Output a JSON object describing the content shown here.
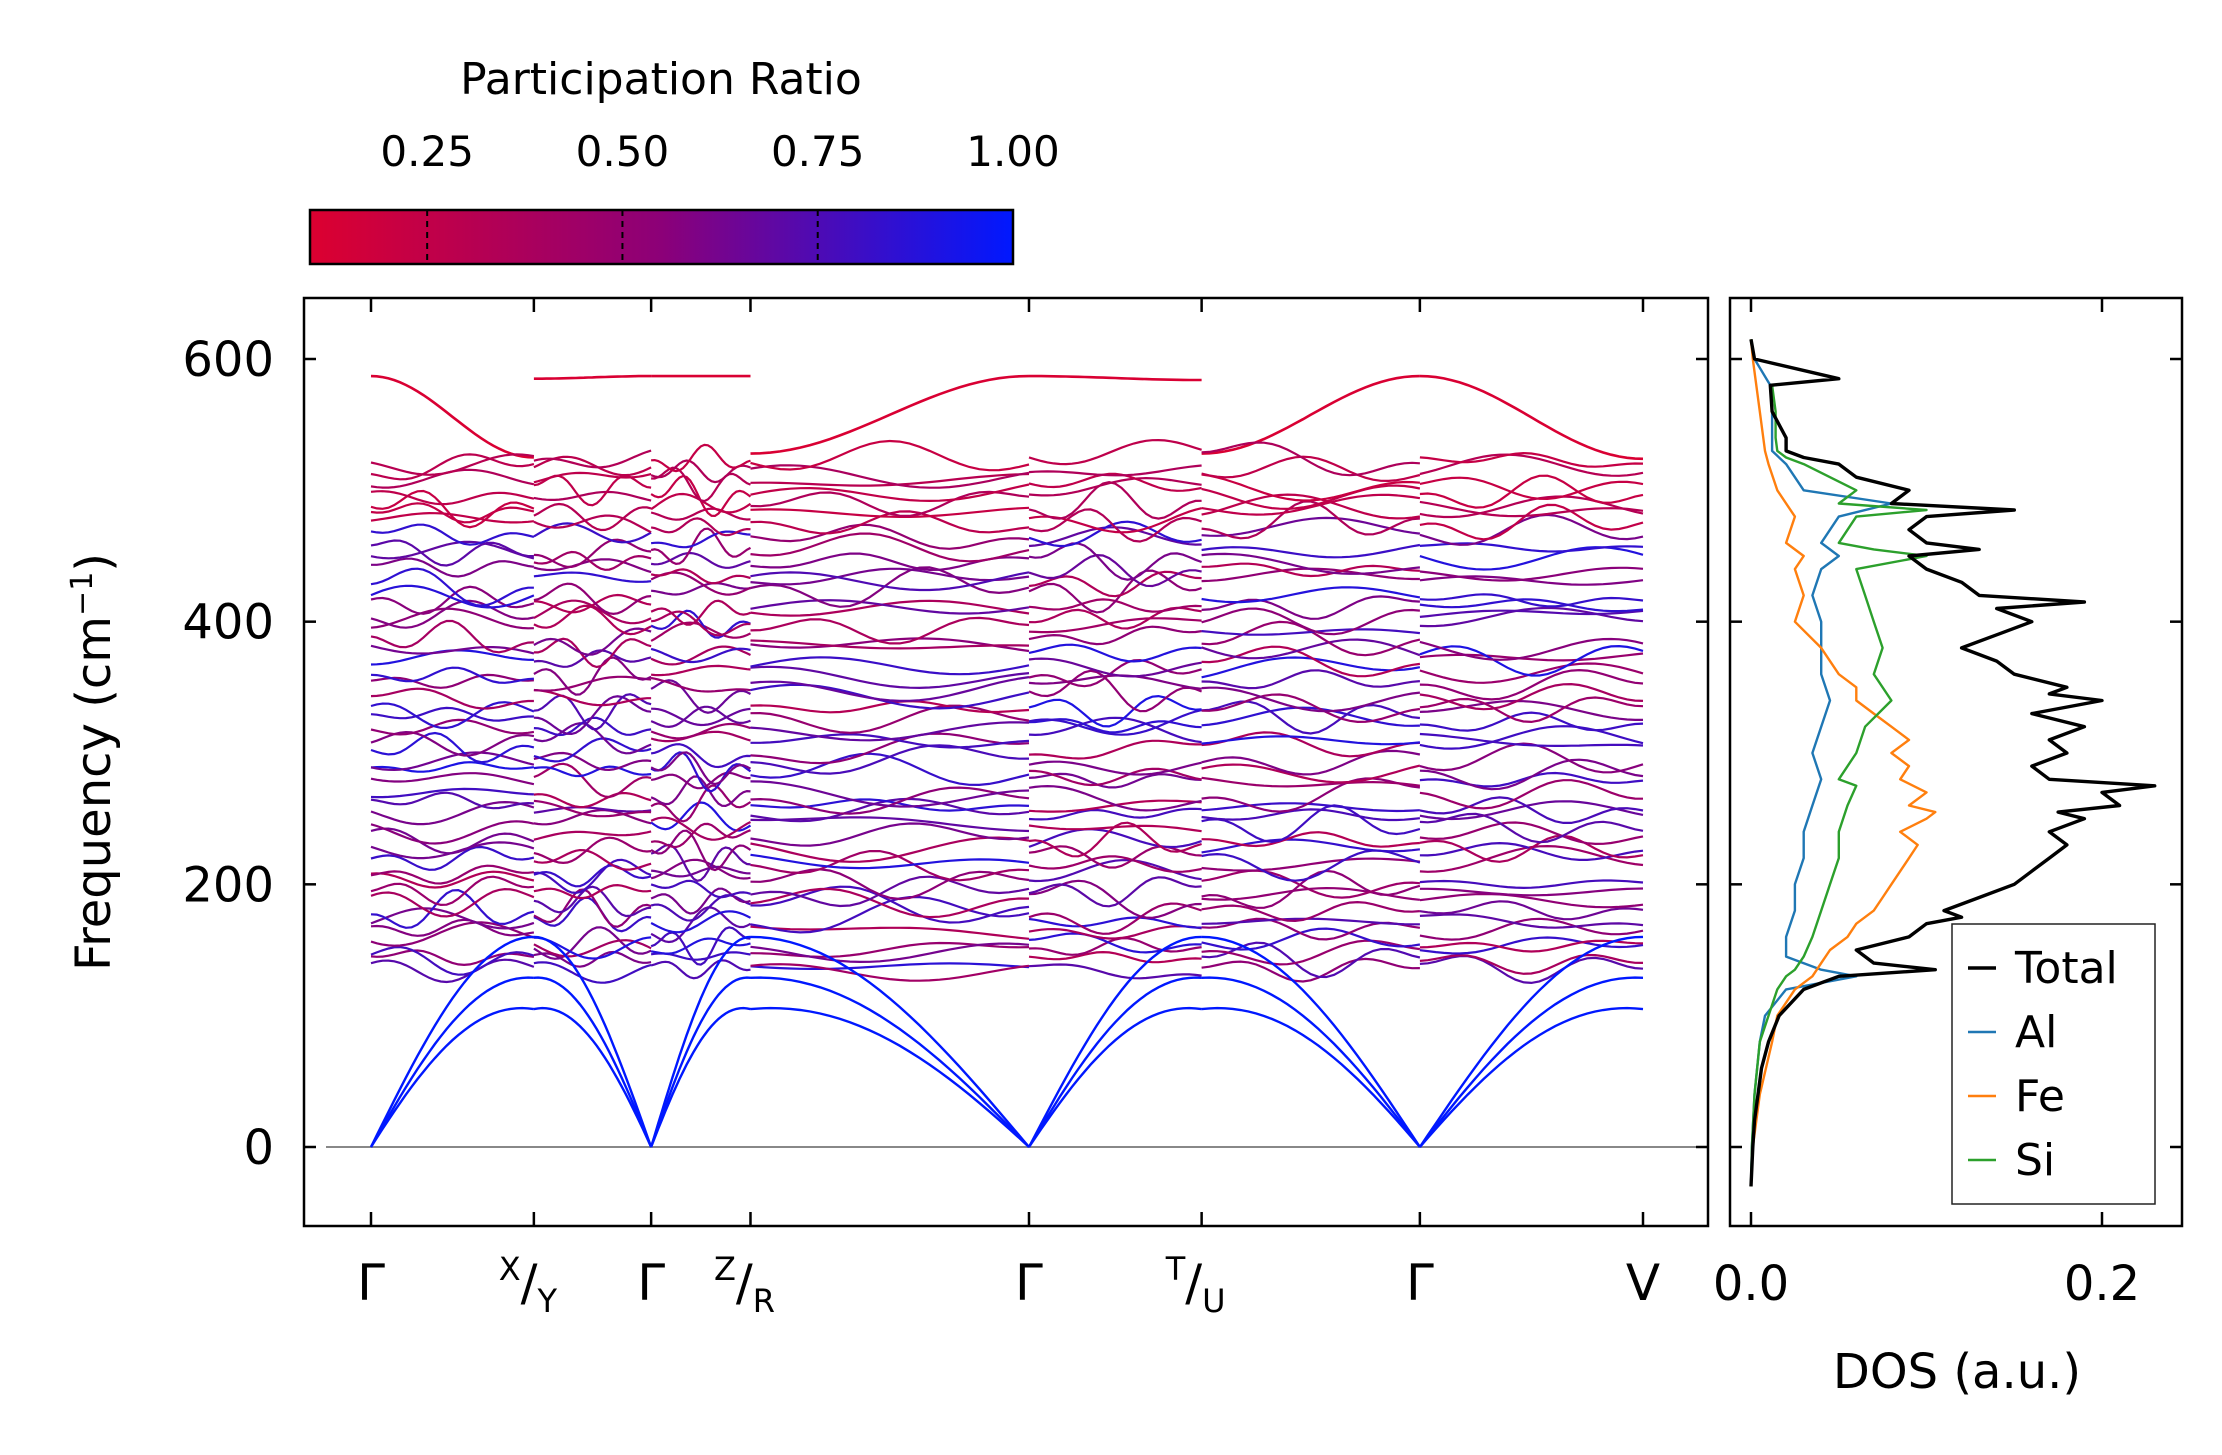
{
  "colorbar": {
    "title": "Participation Ratio",
    "ticks": [
      "0.25",
      "0.50",
      "0.75",
      "1.00"
    ],
    "tick_values": [
      0.25,
      0.5,
      0.75,
      1.0
    ],
    "range": [
      0.1,
      1.0
    ],
    "color_low": "#dc0030",
    "color_mid": "#8c0078",
    "color_high": "#0018ff"
  },
  "chart_data": [
    {
      "type": "line",
      "title": "",
      "ylabel": "Frequency (cm",
      "ylabel_sup": "−1",
      "ylabel_tail": ")",
      "ylim": [
        -60,
        650
      ],
      "yticks": [
        0,
        200,
        400,
        600
      ],
      "ytick_labels": [
        "0",
        "200",
        "400",
        "600"
      ],
      "kpath": [
        {
          "label": "Γ",
          "pos": 0
        },
        {
          "label_sup": "X",
          "label_sub": "Y",
          "pos": 1
        },
        {
          "label": "Γ",
          "pos": 1.72
        },
        {
          "label_sup": "Z",
          "label_sub": "R",
          "pos": 2.33
        },
        {
          "label": "Γ",
          "pos": 4.04
        },
        {
          "label_sup": "T",
          "label_sub": "U",
          "pos": 5.1
        },
        {
          "label": "Γ",
          "pos": 6.44
        },
        {
          "label": "V",
          "pos": 7.81
        }
      ],
      "segments": [
        {
          "from": 0,
          "to": 1,
          "top": [
            587,
            525
          ]
        },
        {
          "from": 1,
          "to": 1.72,
          "top": [
            585,
            587
          ]
        },
        {
          "from": 1.72,
          "to": 2.33,
          "top": [
            587,
            587
          ]
        },
        {
          "from": 2.33,
          "to": 4.04,
          "top": [
            528,
            587
          ]
        },
        {
          "from": 4.04,
          "to": 5.1,
          "top": [
            587,
            584
          ]
        },
        {
          "from": 5.1,
          "to": 6.44,
          "top": [
            528,
            587
          ]
        },
        {
          "from": 6.44,
          "to": 7.81,
          "top": [
            587,
            524
          ]
        }
      ],
      "band_count_shown": 48,
      "frequency_range_optical": [
        135,
        525
      ]
    },
    {
      "type": "line",
      "xlabel": "DOS (a.u.)",
      "xlim": [
        -0.012,
        0.24
      ],
      "xticks": [
        0.0,
        0.2
      ],
      "xtick_labels": [
        "0.0",
        "0.2"
      ],
      "ylim": [
        -60,
        650
      ],
      "legend_position": "lower-right",
      "series": [
        {
          "name": "Total",
          "color": "#000000",
          "y": [
            -30,
            0,
            20,
            40,
            60,
            80,
            100,
            120,
            130,
            135,
            140,
            150,
            160,
            170,
            175,
            180,
            190,
            200,
            210,
            220,
            230,
            240,
            250,
            255,
            260,
            270,
            275,
            280,
            290,
            300,
            310,
            320,
            330,
            340,
            345,
            350,
            360,
            370,
            380,
            390,
            400,
            410,
            415,
            420,
            430,
            440,
            450,
            455,
            460,
            470,
            480,
            485,
            490,
            500,
            510,
            520,
            525,
            530,
            540,
            560,
            580,
            585,
            600,
            615
          ],
          "x": [
            0.0,
            0.001,
            0.002,
            0.004,
            0.006,
            0.01,
            0.016,
            0.03,
            0.05,
            0.105,
            0.07,
            0.06,
            0.09,
            0.1,
            0.12,
            0.11,
            0.13,
            0.15,
            0.16,
            0.17,
            0.18,
            0.17,
            0.19,
            0.175,
            0.21,
            0.2,
            0.23,
            0.17,
            0.16,
            0.18,
            0.17,
            0.19,
            0.16,
            0.2,
            0.17,
            0.18,
            0.15,
            0.14,
            0.12,
            0.14,
            0.16,
            0.14,
            0.19,
            0.13,
            0.12,
            0.1,
            0.09,
            0.13,
            0.1,
            0.09,
            0.1,
            0.15,
            0.08,
            0.09,
            0.06,
            0.05,
            0.03,
            0.02,
            0.02,
            0.012,
            0.011,
            0.05,
            0.002,
            0.0
          ]
        },
        {
          "name": "Al",
          "color": "#1f77b4",
          "y": [
            -30,
            0,
            40,
            80,
            100,
            120,
            130,
            135,
            145,
            160,
            180,
            200,
            220,
            240,
            260,
            280,
            300,
            320,
            340,
            360,
            380,
            400,
            420,
            440,
            450,
            460,
            480,
            490,
            500,
            520,
            530,
            560,
            580,
            600,
            615
          ],
          "x": [
            0.0,
            0.0005,
            0.002,
            0.005,
            0.008,
            0.02,
            0.06,
            0.04,
            0.02,
            0.02,
            0.025,
            0.025,
            0.03,
            0.03,
            0.035,
            0.04,
            0.035,
            0.04,
            0.045,
            0.04,
            0.04,
            0.04,
            0.035,
            0.04,
            0.05,
            0.04,
            0.05,
            0.08,
            0.03,
            0.02,
            0.012,
            0.012,
            0.011,
            0.002,
            0.0
          ]
        },
        {
          "name": "Fe",
          "color": "#ff7f0e",
          "y": [
            -30,
            0,
            40,
            80,
            100,
            120,
            130,
            140,
            150,
            160,
            170,
            180,
            190,
            200,
            210,
            220,
            230,
            240,
            250,
            255,
            260,
            270,
            280,
            290,
            300,
            310,
            320,
            330,
            340,
            350,
            360,
            380,
            400,
            420,
            440,
            450,
            460,
            480,
            500,
            520,
            530,
            560,
            600,
            615
          ],
          "x": [
            0.0,
            0.001,
            0.005,
            0.012,
            0.015,
            0.025,
            0.035,
            0.04,
            0.045,
            0.055,
            0.06,
            0.07,
            0.075,
            0.08,
            0.085,
            0.09,
            0.095,
            0.085,
            0.1,
            0.105,
            0.09,
            0.1,
            0.085,
            0.09,
            0.08,
            0.09,
            0.08,
            0.07,
            0.06,
            0.06,
            0.05,
            0.04,
            0.025,
            0.03,
            0.025,
            0.03,
            0.02,
            0.025,
            0.015,
            0.01,
            0.008,
            0.005,
            0.001,
            0.0
          ]
        },
        {
          "name": "Si",
          "color": "#2ca02c",
          "y": [
            -30,
            0,
            40,
            80,
            100,
            120,
            130,
            135,
            145,
            160,
            180,
            200,
            220,
            240,
            260,
            275,
            280,
            300,
            320,
            340,
            360,
            380,
            400,
            420,
            440,
            450,
            455,
            460,
            480,
            485,
            490,
            500,
            520,
            525,
            530,
            540,
            560,
            580,
            585,
            600,
            615
          ],
          "x": [
            0.0,
            0.0005,
            0.002,
            0.005,
            0.01,
            0.015,
            0.02,
            0.025,
            0.03,
            0.035,
            0.04,
            0.045,
            0.05,
            0.05,
            0.055,
            0.06,
            0.05,
            0.06,
            0.065,
            0.08,
            0.07,
            0.075,
            0.07,
            0.065,
            0.06,
            0.1,
            0.07,
            0.05,
            0.06,
            0.1,
            0.05,
            0.06,
            0.03,
            0.02,
            0.015,
            0.014,
            0.014,
            0.012,
            0.05,
            0.002,
            0.0
          ]
        }
      ]
    }
  ]
}
